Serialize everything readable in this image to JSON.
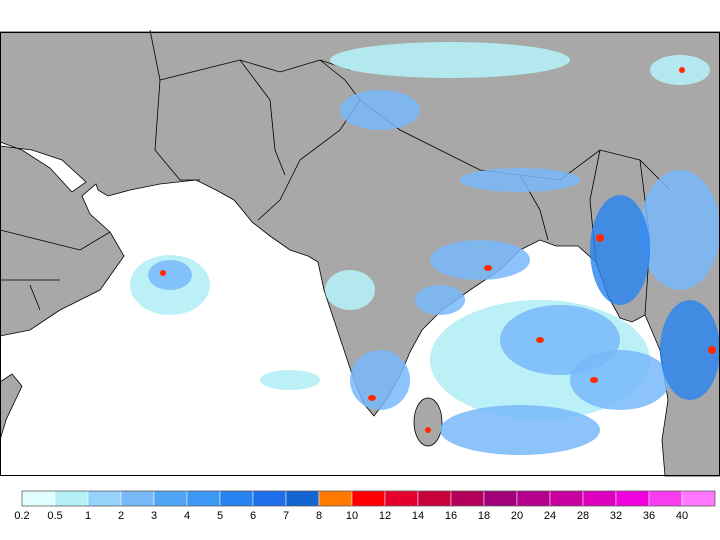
{
  "legend": {
    "labels": [
      0.2,
      0.5,
      1,
      2,
      3,
      4,
      5,
      6,
      7,
      8,
      10,
      12,
      14,
      16,
      18,
      20,
      24,
      28,
      32,
      36,
      40
    ],
    "colors": [
      "#e1ffff",
      "#b4f0f5",
      "#96d2fa",
      "#78b9fa",
      "#50a5f5",
      "#3c97f5",
      "#2883f0",
      "#1e6eeb",
      "#1464d2",
      "#ff7800",
      "#ff0000",
      "#e6002d",
      "#c8003c",
      "#b4005a",
      "#a0007a",
      "#b4008c",
      "#c800a0",
      "#dc00be",
      "#f000dc",
      "#fa3cf0",
      "#ff78ff"
    ]
  }
}
